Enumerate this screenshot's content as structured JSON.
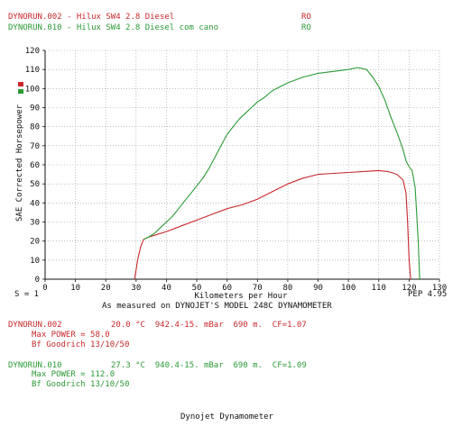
{
  "header": {
    "run1": {
      "label": "DYNORUN.002 - Hilux SW4 2.8 Diesel",
      "code": "RO"
    },
    "run2": {
      "label": "DYNORUN.010 - Hilux SW4 2.8 Diesel com cano",
      "code": "RO"
    }
  },
  "footer": {
    "s_label": "S = 1",
    "pep_label": "PEP 4.95",
    "measured_note": "As measured on DYNOJET'S MODEL 248C DYNAMOMETER",
    "brand": "Dynojet Dynamometer"
  },
  "runs": [
    {
      "title": "DYNORUN.002",
      "conditions": "20.0 °C  942.4-15. mBar  690 m.  CF=1.07",
      "max_power": "Max POWER = 58.0",
      "tire": "Bf Goodrich 13/10/50",
      "color": "#c8282c"
    },
    {
      "title": "DYNORUN.010",
      "conditions": "27.3 °C  940.4-15. mBar  690 m.  CF=1.09",
      "max_power": "Max POWER = 112.0",
      "tire": "Bf Goodrich 13/10/50",
      "color": "#2a9a34"
    }
  ],
  "chart_data": {
    "type": "line",
    "xlabel": "Kilometers per Hour",
    "ylabel": "SAE Corrected Horsepower",
    "xlim": [
      0,
      130
    ],
    "ylim": [
      0,
      120
    ],
    "xticks": [
      0,
      10,
      20,
      30,
      40,
      50,
      60,
      70,
      80,
      90,
      100,
      110,
      120,
      130
    ],
    "yticks": [
      0,
      10,
      20,
      30,
      40,
      50,
      60,
      70,
      80,
      90,
      100,
      110,
      120
    ],
    "grid": "dashed",
    "series": [
      {
        "name": "DYNORUN.002",
        "color": "#c8282c",
        "x": [
          29.5,
          30.5,
          31.5,
          32.5,
          34,
          36,
          40,
          45,
          50,
          55,
          60,
          65,
          70,
          75,
          80,
          85,
          90,
          95,
          100,
          105,
          110,
          113,
          116,
          118,
          119,
          119.5,
          120,
          120.5
        ],
        "y": [
          0,
          10,
          17,
          21,
          22,
          23,
          25,
          28,
          31,
          34,
          37,
          39,
          42,
          46,
          50,
          53,
          55,
          55.5,
          56,
          56.5,
          57,
          56.5,
          55,
          52,
          45,
          30,
          10,
          0
        ]
      },
      {
        "name": "DYNORUN.010",
        "color": "#2a9a34",
        "x": [
          32.5,
          34,
          36,
          38,
          40,
          42,
          44,
          46,
          48,
          50,
          52,
          54,
          56,
          58,
          60,
          62,
          64,
          66,
          68,
          70,
          72,
          75,
          80,
          85,
          90,
          95,
          100,
          103,
          106,
          108,
          110,
          112,
          114,
          116,
          118,
          119,
          120,
          121,
          122,
          123,
          123.5
        ],
        "y": [
          21,
          22,
          24,
          27,
          30,
          33,
          37,
          41,
          45,
          49,
          53,
          58,
          64,
          70,
          76,
          80,
          84,
          87,
          90,
          93,
          95,
          99,
          103,
          106,
          108,
          109,
          110,
          111,
          110,
          106,
          101,
          94,
          85,
          77,
          68,
          62,
          59,
          57,
          48,
          20,
          0
        ]
      }
    ]
  }
}
